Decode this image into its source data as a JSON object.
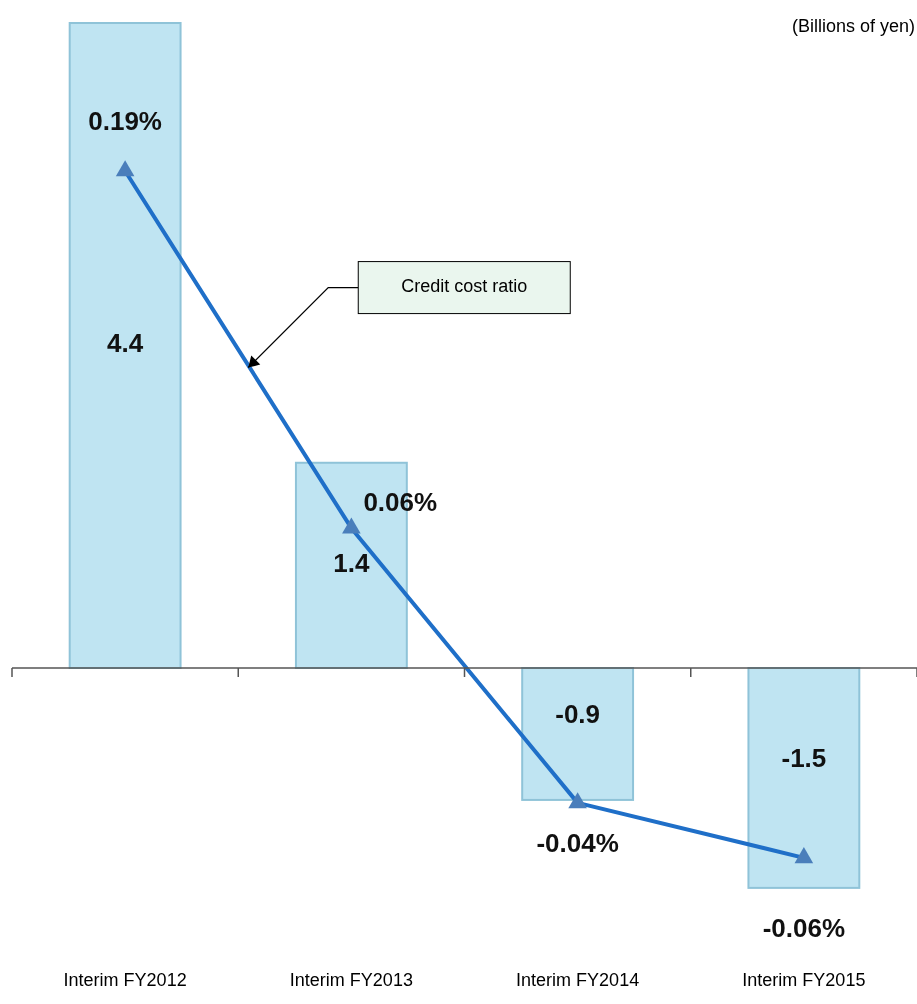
{
  "chart_data": {
    "type": "bar",
    "categories": [
      "Interim FY2012",
      "Interim FY2013",
      "Interim FY2014",
      "Interim FY2015"
    ],
    "series": [
      {
        "color": "#bfe4f2",
        "values": [
          4.4,
          1.4,
          -0.9,
          -1.5
        ],
        "value_labels": [
          "4.4",
          "1.4",
          "-0.9",
          "-1.5"
        ]
      },
      {
        "type": "line",
        "name": "Credit cost ratio",
        "axis": "y2",
        "color": "#1f6fc8",
        "marker": "triangle",
        "values": [
          0.19,
          0.06,
          -0.04,
          -0.06
        ],
        "value_labels": [
          "0.19%",
          "0.06%",
          "-0.04%",
          "-0.06%"
        ]
      }
    ],
    "tick_labels": "x",
    "annotations": [
      "(Billions of yen)"
    ]
  }
}
